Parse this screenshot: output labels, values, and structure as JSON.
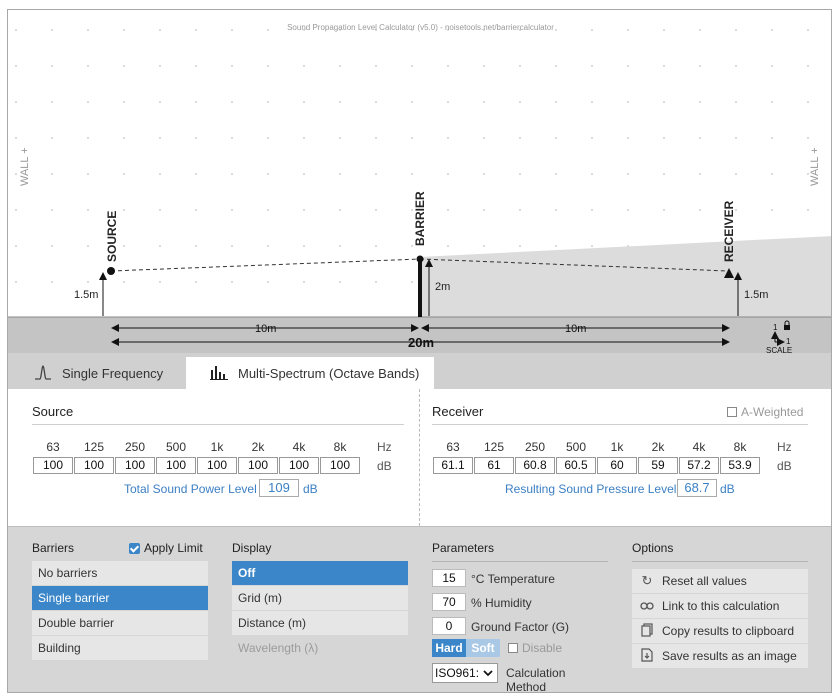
{
  "app": {
    "title": "Sound Propagation Level Calculator (v5.0) - noisetools.net/barriercalculator"
  },
  "scene": {
    "wall_left": "WALL +",
    "wall_right": "WALL +",
    "source_label": "SOURCE",
    "barrier_label": "BARRIER",
    "receiver_label": "RECEIVER",
    "source_height": "1.5m",
    "barrier_height": "2m",
    "receiver_height": "1.5m",
    "dist_left": "10m",
    "dist_right": "10m",
    "dist_total": "20m",
    "scale_label": "SCALE",
    "scale_x": "1",
    "scale_y": "1"
  },
  "tabs": [
    {
      "label": "Single Frequency",
      "icon": "single-frequency-icon",
      "active": false
    },
    {
      "label": "Multi-Spectrum (Octave Bands)",
      "icon": "bar-chart-icon",
      "active": true
    }
  ],
  "source": {
    "title": "Source",
    "freqs": [
      "63",
      "125",
      "250",
      "500",
      "1k",
      "2k",
      "4k",
      "8k"
    ],
    "freq_unit": "Hz",
    "values": [
      "100",
      "100",
      "100",
      "100",
      "100",
      "100",
      "100",
      "100"
    ],
    "value_unit": "dB",
    "total_label": "Total Sound Power Level",
    "total_value": "109",
    "total_unit": "dB"
  },
  "receiver": {
    "title": "Receiver",
    "a_weighted": "A-Weighted",
    "freqs": [
      "63",
      "125",
      "250",
      "500",
      "1k",
      "2k",
      "4k",
      "8k"
    ],
    "freq_unit": "Hz",
    "values": [
      "61.1",
      "61",
      "60.8",
      "60.5",
      "60",
      "59",
      "57.2",
      "53.9"
    ],
    "value_unit": "dB",
    "total_label": "Resulting Sound Pressure Level",
    "total_value": "68.7",
    "total_unit": "dB"
  },
  "barriers": {
    "title": "Barriers",
    "apply_limit": "Apply Limit",
    "items": [
      "No barriers",
      "Single barrier",
      "Double barrier",
      "Building"
    ],
    "selected": 1
  },
  "display": {
    "title": "Display",
    "items": [
      "Off",
      "Grid (m)",
      "Distance (m)",
      "Wavelength (λ)"
    ],
    "selected": 0
  },
  "parameters": {
    "title": "Parameters",
    "temperature": "15",
    "temperature_label": "°C Temperature",
    "humidity": "70",
    "humidity_label": "% Humidity",
    "ground_factor": "0",
    "ground_factor_label": "Ground Factor (G)",
    "hard_label": "Hard",
    "soft_label": "Soft",
    "disable_label": "Disable",
    "method_value": "ISO961:",
    "method_label": "Calculation Method"
  },
  "options": {
    "title": "Options",
    "items": [
      {
        "label": "Reset all values",
        "icon": "reset-icon"
      },
      {
        "label": "Link to this calculation",
        "icon": "link-icon"
      },
      {
        "label": "Copy results to clipboard",
        "icon": "copy-icon"
      },
      {
        "label": "Save results as an image",
        "icon": "save-image-icon"
      }
    ]
  },
  "colors": {
    "accent": "#3b86c8",
    "ground": "#c4c4c4",
    "shadow": "#dcdcdc",
    "blue_text": "#3b7fc4"
  }
}
